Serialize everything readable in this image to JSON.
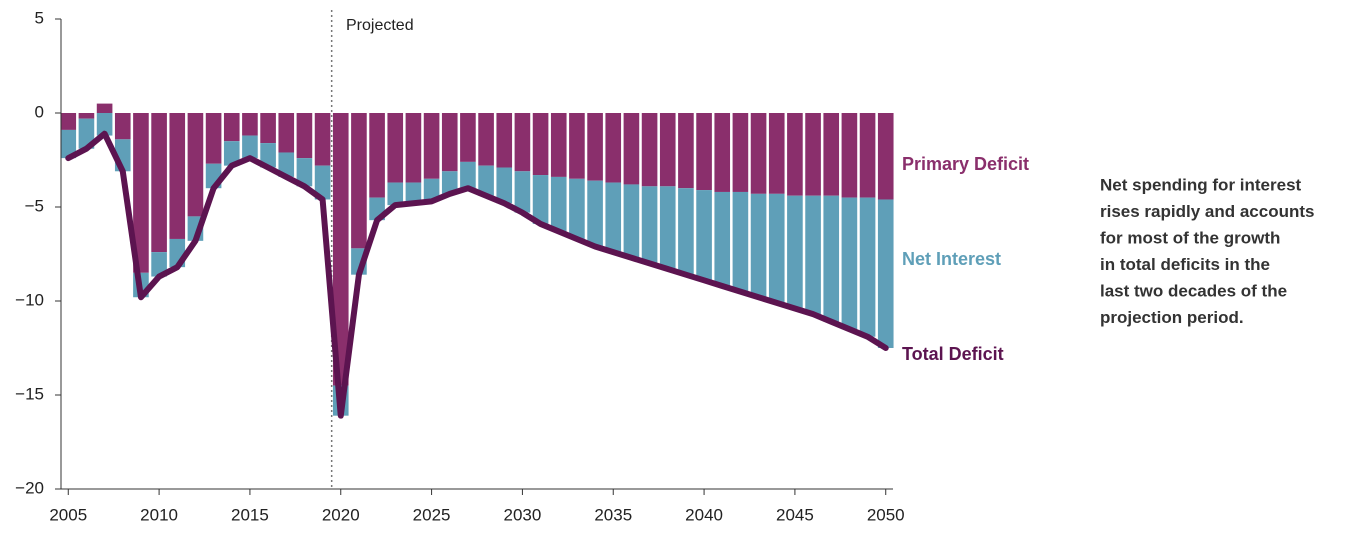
{
  "chart_data": {
    "type": "stacked_bar_line",
    "annotation": "Projected",
    "projection_start": 2019.5,
    "note": [
      "Net spending for interest",
      "rises rapidly and accounts",
      "for most of the growth",
      "in total deficits in the",
      "last two decades of the",
      "projection period."
    ],
    "x": [
      2005,
      2006,
      2007,
      2008,
      2009,
      2010,
      2011,
      2012,
      2013,
      2014,
      2015,
      2016,
      2017,
      2018,
      2019,
      2020,
      2021,
      2022,
      2023,
      2024,
      2025,
      2026,
      2027,
      2028,
      2029,
      2030,
      2031,
      2032,
      2033,
      2034,
      2035,
      2036,
      2037,
      2038,
      2039,
      2040,
      2041,
      2042,
      2043,
      2044,
      2045,
      2046,
      2047,
      2048,
      2049,
      2050
    ],
    "series": [
      {
        "name": "Primary Deficit",
        "color": "#8a2f6c",
        "values": [
          -0.9,
          -0.3,
          0.5,
          -1.4,
          -8.5,
          -7.4,
          -6.7,
          -5.5,
          -2.7,
          -1.5,
          -1.2,
          -1.6,
          -2.1,
          -2.4,
          -2.8,
          -14.5,
          -7.2,
          -4.5,
          -3.7,
          -3.7,
          -3.5,
          -3.1,
          -2.6,
          -2.8,
          -2.9,
          -3.1,
          -3.3,
          -3.4,
          -3.5,
          -3.6,
          -3.7,
          -3.8,
          -3.9,
          -3.9,
          -4.0,
          -4.1,
          -4.2,
          -4.2,
          -4.3,
          -4.3,
          -4.4,
          -4.4,
          -4.4,
          -4.5,
          -4.5,
          -4.6
        ]
      },
      {
        "name": "Net Interest",
        "color": "#5f9fb8",
        "values": [
          -1.5,
          -1.6,
          -1.2,
          -1.7,
          -1.3,
          -1.3,
          -1.5,
          -1.3,
          -1.3,
          -1.3,
          -1.2,
          -1.3,
          -1.3,
          -1.5,
          -1.8,
          -1.6,
          -1.4,
          -1.2,
          -1.2,
          -1.1,
          -1.2,
          -1.2,
          -1.4,
          -1.6,
          -1.9,
          -2.2,
          -2.6,
          -2.9,
          -3.2,
          -3.5,
          -3.7,
          -3.9,
          -4.1,
          -4.4,
          -4.6,
          -4.8,
          -5.0,
          -5.3,
          -5.5,
          -5.8,
          -6.0,
          -6.3,
          -6.7,
          -7.0,
          -7.4,
          -7.9
        ]
      },
      {
        "name": "Total Deficit",
        "color": "#5c1450",
        "type": "line",
        "values": [
          -2.4,
          -1.9,
          -1.1,
          -3.1,
          -9.8,
          -8.7,
          -8.2,
          -6.8,
          -4.0,
          -2.8,
          -2.4,
          -2.9,
          -3.4,
          -3.9,
          -4.6,
          -16.1,
          -8.6,
          -5.7,
          -4.9,
          -4.8,
          -4.7,
          -4.3,
          -4.0,
          -4.4,
          -4.8,
          -5.3,
          -5.9,
          -6.3,
          -6.7,
          -7.1,
          -7.4,
          -7.7,
          -8.0,
          -8.3,
          -8.6,
          -8.9,
          -9.2,
          -9.5,
          -9.8,
          -10.1,
          -10.4,
          -10.7,
          -11.1,
          -11.5,
          -11.9,
          -12.5
        ]
      }
    ],
    "xlim": [
      2004.6,
      2050.4
    ],
    "xticks": [
      2005,
      2010,
      2015,
      2020,
      2025,
      2030,
      2035,
      2040,
      2045,
      2050
    ],
    "ylim": [
      -20,
      5
    ],
    "yticks": [
      {
        "value": -20,
        "label": "−20"
      },
      {
        "value": -15,
        "label": "−15"
      },
      {
        "value": -10,
        "label": "−10"
      },
      {
        "value": -5,
        "label": "−5"
      },
      0,
      5
    ]
  }
}
